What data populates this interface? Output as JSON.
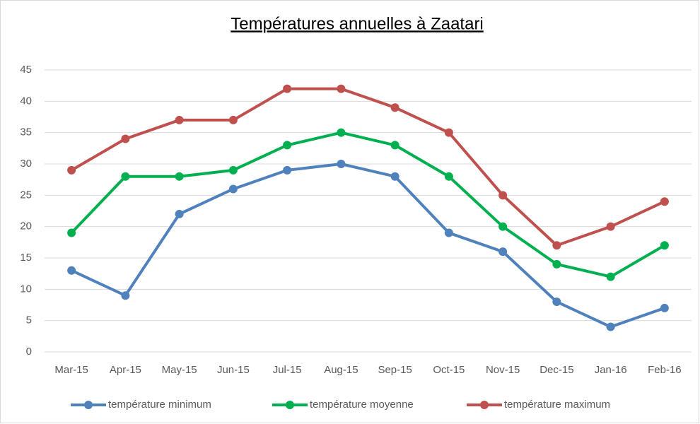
{
  "chart_data": {
    "type": "line",
    "title": "Températures annuelles à Zaatari",
    "categories": [
      "Mar-15",
      "Apr-15",
      "May-15",
      "Jun-15",
      "Jul-15",
      "Aug-15",
      "Sep-15",
      "Oct-15",
      "Nov-15",
      "Dec-15",
      "Jan-16",
      "Feb-16"
    ],
    "series": [
      {
        "name": "température minimum",
        "color": "#4f81bd",
        "values": [
          13,
          9,
          22,
          26,
          29,
          30,
          28,
          19,
          16,
          8,
          4,
          7
        ]
      },
      {
        "name": "température moyenne",
        "color": "#00b050",
        "values": [
          19,
          28,
          28,
          29,
          33,
          35,
          33,
          28,
          20,
          14,
          12,
          17
        ]
      },
      {
        "name": "température maximum",
        "color": "#c0504d",
        "values": [
          29,
          34,
          37,
          37,
          42,
          42,
          39,
          35,
          25,
          17,
          20,
          24
        ]
      }
    ],
    "ylim": [
      0,
      45
    ],
    "yticks": [
      0,
      5,
      10,
      15,
      20,
      25,
      30,
      35,
      40,
      45
    ],
    "grid": true,
    "legend": "bottom"
  }
}
